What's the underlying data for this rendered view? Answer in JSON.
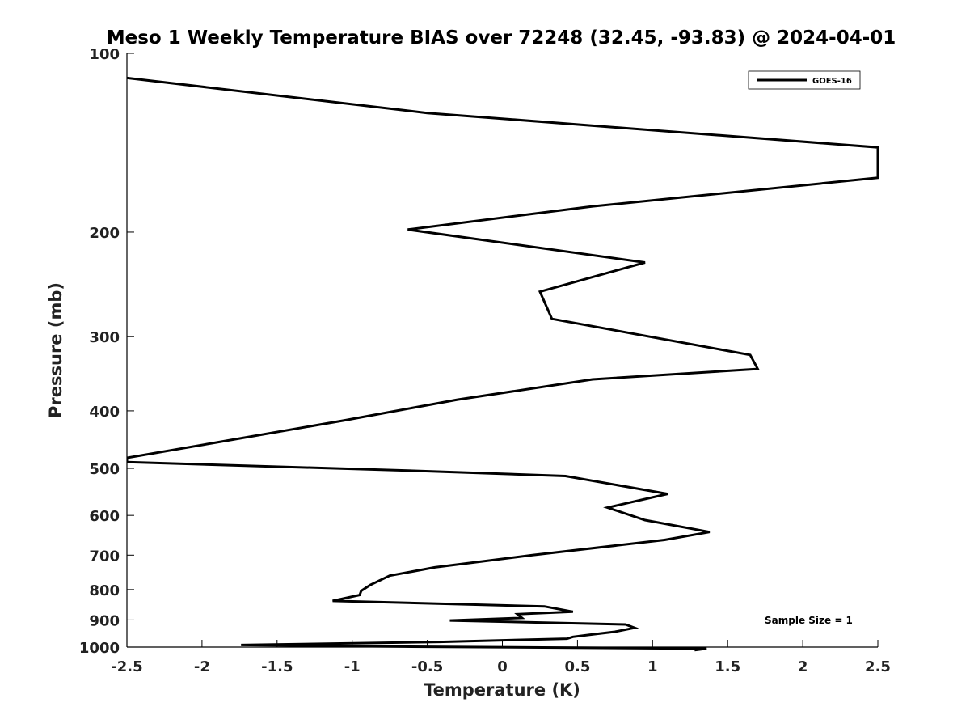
{
  "chart_data": {
    "type": "line",
    "title": "Meso 1 Weekly Temperature BIAS over 72248 (32.45, -93.83) @ 2024-04-01",
    "xlabel": "Temperature (K)",
    "ylabel": "Pressure (mb)",
    "xlim": [
      -2.5,
      2.5
    ],
    "ylim": [
      100,
      1000
    ],
    "y_scale": "log",
    "y_reversed": true,
    "xticks": [
      "-2.5",
      "-2",
      "-1.5",
      "-1",
      "-0.5",
      "0",
      "0.5",
      "1",
      "1.5",
      "2",
      "2.5"
    ],
    "xtick_values": [
      -2.5,
      -2,
      -1.5,
      -1,
      -0.5,
      0,
      0.5,
      1,
      1.5,
      2,
      2.5
    ],
    "yticks": [
      "100",
      "200",
      "300",
      "400",
      "500",
      "600",
      "700",
      "800",
      "900",
      "1000"
    ],
    "ytick_values": [
      100,
      200,
      300,
      400,
      500,
      600,
      700,
      800,
      900,
      1000
    ],
    "grid": false,
    "legend_position": "top-right",
    "annotation": "Sample Size = 1",
    "line_color": "#000000",
    "series": [
      {
        "name": "GOES-16",
        "points": [
          {
            "x": -2.5,
            "y": 110
          },
          {
            "x": -0.5,
            "y": 126
          },
          {
            "x": 2.5,
            "y": 144
          },
          {
            "x": 2.5,
            "y": 162
          },
          {
            "x": 0.6,
            "y": 181
          },
          {
            "x": -0.63,
            "y": 198
          },
          {
            "x": 0.95,
            "y": 225
          },
          {
            "x": 0.25,
            "y": 252
          },
          {
            "x": 0.33,
            "y": 280
          },
          {
            "x": 1.65,
            "y": 322
          },
          {
            "x": 1.7,
            "y": 340
          },
          {
            "x": 0.6,
            "y": 354
          },
          {
            "x": -0.3,
            "y": 383
          },
          {
            "x": -1.05,
            "y": 415
          },
          {
            "x": -1.9,
            "y": 452
          },
          {
            "x": -2.5,
            "y": 480
          },
          {
            "x": -2.5,
            "y": 488
          },
          {
            "x": -0.55,
            "y": 505
          },
          {
            "x": 0.42,
            "y": 515
          },
          {
            "x": 1.1,
            "y": 552
          },
          {
            "x": 0.7,
            "y": 582
          },
          {
            "x": 0.95,
            "y": 611
          },
          {
            "x": 1.38,
            "y": 640
          },
          {
            "x": 1.08,
            "y": 660
          },
          {
            "x": 0.2,
            "y": 700
          },
          {
            "x": -0.45,
            "y": 734
          },
          {
            "x": -0.75,
            "y": 758
          },
          {
            "x": -0.88,
            "y": 786
          },
          {
            "x": -0.94,
            "y": 804
          },
          {
            "x": -0.95,
            "y": 817
          },
          {
            "x": -1.13,
            "y": 836
          },
          {
            "x": 0.28,
            "y": 854
          },
          {
            "x": 0.47,
            "y": 872
          },
          {
            "x": 0.1,
            "y": 880
          },
          {
            "x": 0.13,
            "y": 893
          },
          {
            "x": -0.35,
            "y": 902
          },
          {
            "x": 0.82,
            "y": 916
          },
          {
            "x": 0.88,
            "y": 928
          },
          {
            "x": 0.75,
            "y": 942
          },
          {
            "x": 0.58,
            "y": 953
          },
          {
            "x": 0.47,
            "y": 961
          },
          {
            "x": 0.43,
            "y": 968
          },
          {
            "x": -0.42,
            "y": 980
          },
          {
            "x": -1.74,
            "y": 992
          },
          {
            "x": -0.65,
            "y": 998
          },
          {
            "x": 1.36,
            "y": 1006
          },
          {
            "x": 1.28,
            "y": 1012
          }
        ]
      }
    ]
  }
}
